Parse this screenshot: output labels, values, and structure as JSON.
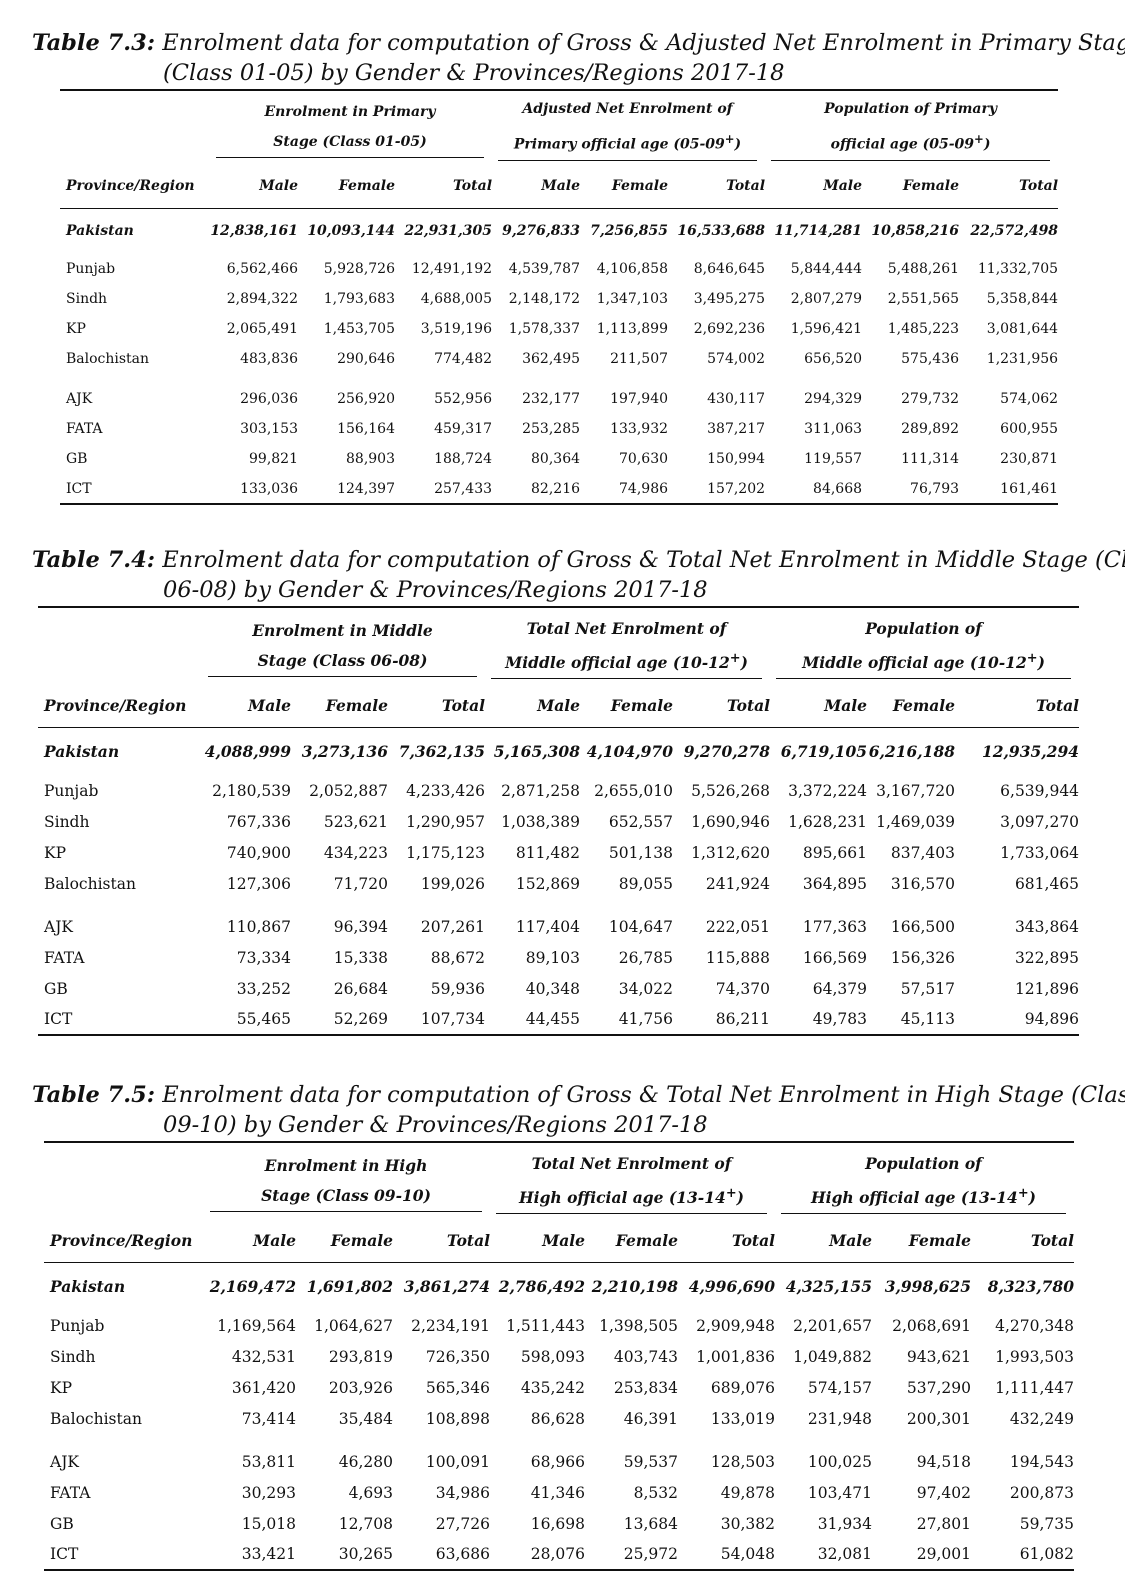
{
  "tables": [
    {
      "label": "Table 7.3:",
      "title_line1": "Enrolment data for computation of Gross & Adjusted Net Enrolment in Primary Stage",
      "title_line2": "(Class 01-05) by Gender & Provinces/Regions 2017-18",
      "group_headers": [
        {
          "line1": "Enrolment in Primary",
          "line2": "Stage (Class 01-05)"
        },
        {
          "line1": "Adjusted Net Enrolment of",
          "line2": "Primary official age (05-09",
          "sup": "+",
          "after": ")"
        },
        {
          "line1": "Population of Primary",
          "line2": "official age (05-09",
          "sup": "+",
          "after": ")"
        }
      ],
      "col_headers": [
        "Province/Region",
        "Male",
        "Female",
        "Total",
        "Male",
        "Female",
        "Total",
        "Male",
        "Female",
        "Total"
      ],
      "rows": [
        [
          "Pakistan",
          "12,838,161",
          "10,093,144",
          "22,931,305",
          "9,276,833",
          "7,256,855",
          "16,533,688",
          "11,714,281",
          "10,858,216",
          "22,572,498"
        ],
        [
          "Punjab",
          "6,562,466",
          "5,928,726",
          "12,491,192",
          "4,539,787",
          "4,106,858",
          "8,646,645",
          "5,844,444",
          "5,488,261",
          "11,332,705"
        ],
        [
          "Sindh",
          "2,894,322",
          "1,793,683",
          "4,688,005",
          "2,148,172",
          "1,347,103",
          "3,495,275",
          "2,807,279",
          "2,551,565",
          "5,358,844"
        ],
        [
          "KP",
          "2,065,491",
          "1,453,705",
          "3,519,196",
          "1,578,337",
          "1,113,899",
          "2,692,236",
          "1,596,421",
          "1,485,223",
          "3,081,644"
        ],
        [
          "Balochistan",
          "483,836",
          "290,646",
          "774,482",
          "362,495",
          "211,507",
          "574,002",
          "656,520",
          "575,436",
          "1,231,956"
        ],
        [
          "AJK",
          "296,036",
          "256,920",
          "552,956",
          "232,177",
          "197,940",
          "430,117",
          "294,329",
          "279,732",
          "574,062"
        ],
        [
          "FATA",
          "303,153",
          "156,164",
          "459,317",
          "253,285",
          "133,932",
          "387,217",
          "311,063",
          "289,892",
          "600,955"
        ],
        [
          "GB",
          "99,821",
          "88,903",
          "188,724",
          "80,364",
          "70,630",
          "150,994",
          "119,557",
          "111,314",
          "230,871"
        ],
        [
          "ICT",
          "133,036",
          "124,397",
          "257,433",
          "82,216",
          "74,986",
          "157,202",
          "84,668",
          "76,793",
          "161,461"
        ]
      ]
    },
    {
      "label": "Table 7.4:",
      "title_line1": "Enrolment data for computation of Gross & Total Net Enrolment in Middle Stage (Class",
      "title_line2": "06-08) by Gender & Provinces/Regions 2017-18",
      "group_headers": [
        {
          "line1": "Enrolment in Middle",
          "line2": "Stage (Class 06-08)"
        },
        {
          "line1": "Total Net Enrolment of",
          "line2": "Middle official age (10-12",
          "sup": "+",
          "after": ")"
        },
        {
          "line1": "Population of",
          "line2": "Middle official age (10-12",
          "sup": "+",
          "after": ")"
        }
      ],
      "col_headers": [
        "Province/Region",
        "Male",
        "Female",
        "Total",
        "Male",
        "Female",
        "Total",
        "Male",
        "Female",
        "Total"
      ],
      "rows": [
        [
          "Pakistan",
          "4,088,999",
          "3,273,136",
          "7,362,135",
          "5,165,308",
          "4,104,970",
          "9,270,278",
          "6,719,105",
          "6,216,188",
          "12,935,294"
        ],
        [
          "Punjab",
          "2,180,539",
          "2,052,887",
          "4,233,426",
          "2,871,258",
          "2,655,010",
          "5,526,268",
          "3,372,224",
          "3,167,720",
          "6,539,944"
        ],
        [
          "Sindh",
          "767,336",
          "523,621",
          "1,290,957",
          "1,038,389",
          "652,557",
          "1,690,946",
          "1,628,231",
          "1,469,039",
          "3,097,270"
        ],
        [
          "KP",
          "740,900",
          "434,223",
          "1,175,123",
          "811,482",
          "501,138",
          "1,312,620",
          "895,661",
          "837,403",
          "1,733,064"
        ],
        [
          "Balochistan",
          "127,306",
          "71,720",
          "199,026",
          "152,869",
          "89,055",
          "241,924",
          "364,895",
          "316,570",
          "681,465"
        ],
        [
          "AJK",
          "110,867",
          "96,394",
          "207,261",
          "117,404",
          "104,647",
          "222,051",
          "177,363",
          "166,500",
          "343,864"
        ],
        [
          "FATA",
          "73,334",
          "15,338",
          "88,672",
          "89,103",
          "26,785",
          "115,888",
          "166,569",
          "156,326",
          "322,895"
        ],
        [
          "GB",
          "33,252",
          "26,684",
          "59,936",
          "40,348",
          "34,022",
          "74,370",
          "64,379",
          "57,517",
          "121,896"
        ],
        [
          "ICT",
          "55,465",
          "52,269",
          "107,734",
          "44,455",
          "41,756",
          "86,211",
          "49,783",
          "45,113",
          "94,896"
        ]
      ]
    },
    {
      "label": "Table 7.5:",
      "title_line1": "Enrolment data for computation of Gross & Total Net Enrolment in High Stage (Class",
      "title_line2": "09-10) by Gender & Provinces/Regions 2017-18",
      "group_headers": [
        {
          "line1": "Enrolment in High",
          "line2": "Stage (Class 09-10)"
        },
        {
          "line1": "Total Net Enrolment of",
          "line2": "High official age (13-14",
          "sup": "+",
          "after": ")"
        },
        {
          "line1": "Population of",
          "line2": "High official age (13-14",
          "sup": "+",
          "after": ")"
        }
      ],
      "col_headers": [
        "Province/Region",
        "Male",
        "Female",
        "Total",
        "Male",
        "Female",
        "Total",
        "Male",
        "Female",
        "Total"
      ],
      "rows": [
        [
          "Pakistan",
          "2,169,472",
          "1,691,802",
          "3,861,274",
          "2,786,492",
          "2,210,198",
          "4,996,690",
          "4,325,155",
          "3,998,625",
          "8,323,780"
        ],
        [
          "Punjab",
          "1,169,564",
          "1,064,627",
          "2,234,191",
          "1,511,443",
          "1,398,505",
          "2,909,948",
          "2,201,657",
          "2,068,691",
          "4,270,348"
        ],
        [
          "Sindh",
          "432,531",
          "293,819",
          "726,350",
          "598,093",
          "403,743",
          "1,001,836",
          "1,049,882",
          "943,621",
          "1,993,503"
        ],
        [
          "KP",
          "361,420",
          "203,926",
          "565,346",
          "435,242",
          "253,834",
          "689,076",
          "574,157",
          "537,290",
          "1,111,447"
        ],
        [
          "Balochistan",
          "73,414",
          "35,484",
          "108,898",
          "86,628",
          "46,391",
          "133,019",
          "231,948",
          "200,301",
          "432,249"
        ],
        [
          "AJK",
          "53,811",
          "46,280",
          "100,091",
          "68,966",
          "59,537",
          "128,503",
          "100,025",
          "94,518",
          "194,543"
        ],
        [
          "FATA",
          "30,293",
          "4,693",
          "34,986",
          "41,346",
          "8,532",
          "49,878",
          "103,471",
          "97,402",
          "200,873"
        ],
        [
          "GB",
          "15,018",
          "12,708",
          "27,726",
          "16,698",
          "13,684",
          "30,382",
          "31,934",
          "27,801",
          "59,735"
        ],
        [
          "ICT",
          "33,421",
          "30,265",
          "63,686",
          "28,076",
          "25,972",
          "54,048",
          "32,081",
          "29,001",
          "61,082"
        ]
      ]
    }
  ]
}
